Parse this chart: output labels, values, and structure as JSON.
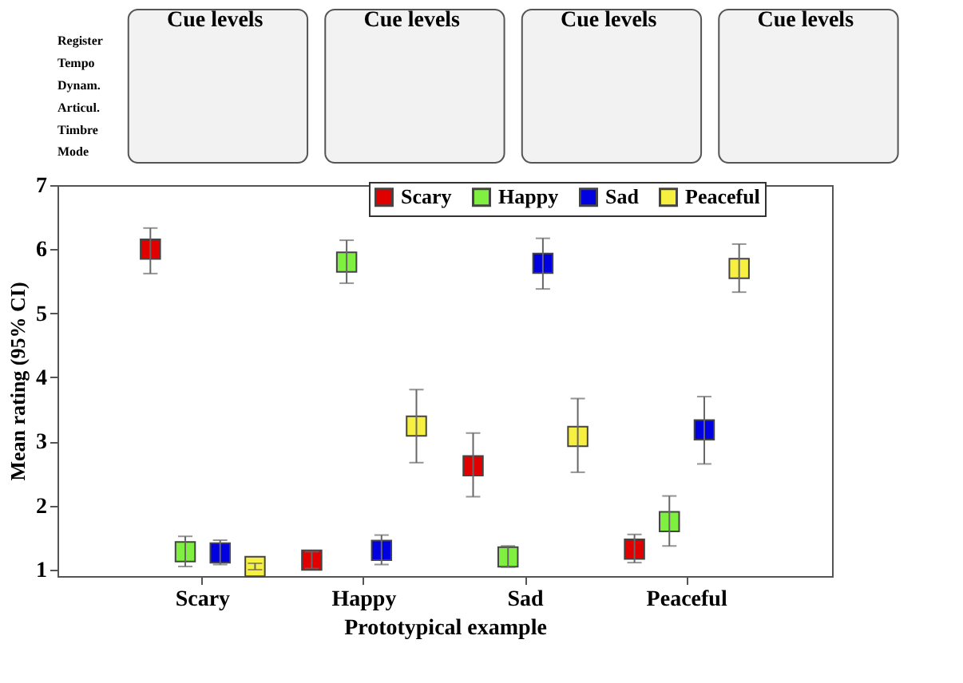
{
  "chart_data": {
    "type": "scatter",
    "xlabel": "Prototypical example",
    "ylabel": "Mean rating (95% CI)",
    "categories": [
      "Scary",
      "Happy",
      "Sad",
      "Peaceful"
    ],
    "series": [
      {
        "name": "Scary",
        "color": "#e00000",
        "values": [
          6.0,
          1.15,
          2.62,
          1.32
        ],
        "errors": [
          [
            5.62,
            6.33
          ],
          [
            1.02,
            1.28
          ],
          [
            2.14,
            3.13
          ],
          [
            1.11,
            1.55
          ]
        ]
      },
      {
        "name": "Happy",
        "color": "#80f040",
        "values": [
          1.28,
          5.8,
          1.2,
          1.75
        ],
        "errors": [
          [
            1.05,
            1.52
          ],
          [
            5.47,
            6.14
          ],
          [
            1.04,
            1.37
          ],
          [
            1.37,
            2.15
          ]
        ]
      },
      {
        "name": "Sad",
        "color": "#0000e0",
        "values": [
          1.26,
          1.3,
          5.78,
          3.18
        ],
        "errors": [
          [
            1.08,
            1.46
          ],
          [
            1.08,
            1.54
          ],
          [
            5.38,
            6.17
          ],
          [
            2.65,
            3.7
          ]
        ]
      },
      {
        "name": "Peaceful",
        "color": "#f8f040",
        "values": [
          1.05,
          3.24,
          3.08,
          5.7
        ],
        "errors": [
          [
            1.0,
            1.1
          ],
          [
            2.67,
            3.81
          ],
          [
            2.52,
            3.67
          ],
          [
            5.33,
            6.08
          ]
        ]
      }
    ],
    "ylim": [
      0.9,
      7
    ],
    "yticks": [
      1,
      2,
      3,
      4,
      5,
      6,
      7
    ],
    "marker": "square",
    "legend": "top right",
    "grid": false,
    "annotations": [
      "Cue levels",
      "Cue levels",
      "Cue levels",
      "Cue levels",
      "Register",
      "Tempo",
      "Dynam.",
      "Articul.",
      "Timbre",
      "Mode"
    ]
  }
}
